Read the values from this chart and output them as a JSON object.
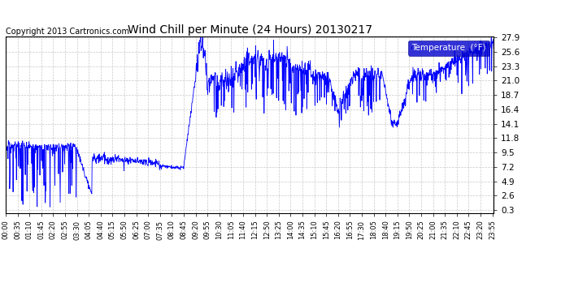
{
  "title": "Wind Chill per Minute (24 Hours) 20130217",
  "copyright_text": "Copyright 2013 Cartronics.com",
  "legend_label": "Temperature  (°F)",
  "legend_bg": "#0000cc",
  "legend_text_color": "#ffffff",
  "line_color": "#0000ff",
  "bg_color": "#ffffff",
  "grid_color": "#bbbbbb",
  "yticks": [
    0.3,
    2.6,
    4.9,
    7.2,
    9.5,
    11.8,
    14.1,
    16.4,
    18.7,
    21.0,
    23.3,
    25.6,
    27.9
  ],
  "xlim_minutes": [
    0,
    1439
  ],
  "ylim_low": 0.0,
  "ylim_high": 27.9,
  "tick_interval_minutes": 35,
  "figsize": [
    6.9,
    3.75
  ],
  "dpi": 100
}
